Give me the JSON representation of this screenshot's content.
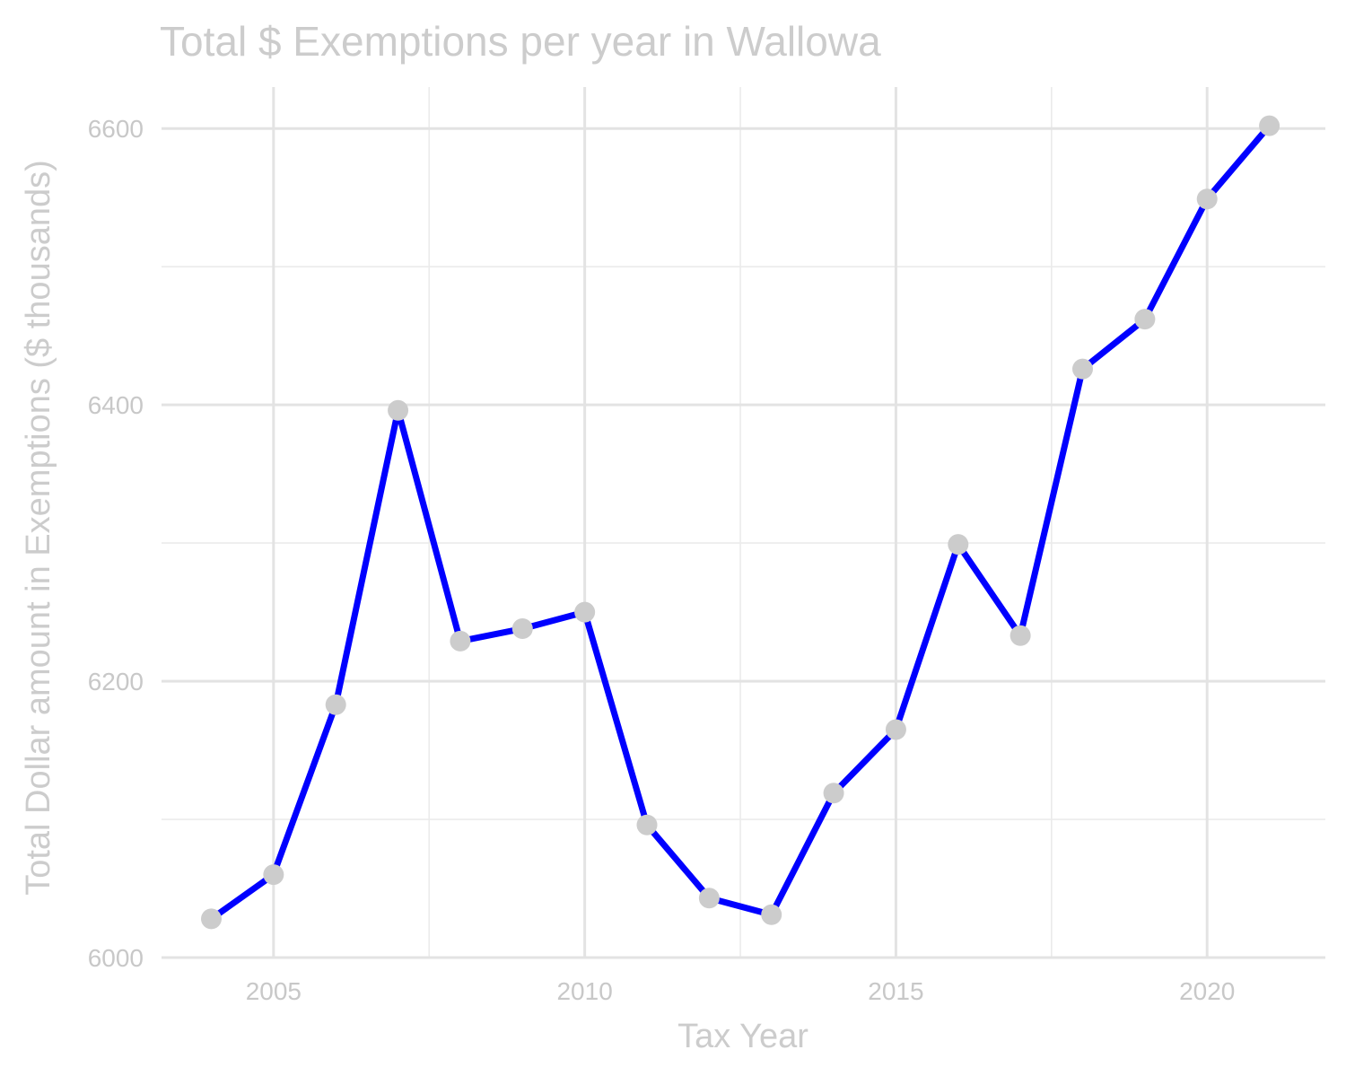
{
  "chart_data": {
    "type": "line",
    "title": "Total $ Exemptions per year in Wallowa",
    "xlabel": "Tax Year",
    "ylabel": "Total Dollar amount in Exemptions ($ thousands)",
    "xlim": [
      2003.2,
      2021.9
    ],
    "ylim": [
      6000,
      6630
    ],
    "x_ticks": [
      2005,
      2010,
      2015,
      2020
    ],
    "x_tick_labels": [
      "2005",
      "2010",
      "2015",
      "2020"
    ],
    "y_ticks": [
      6000,
      6200,
      6400,
      6600
    ],
    "y_tick_labels": [
      "6000",
      "6200",
      "6400",
      "6600"
    ],
    "x_minor_ticks": [
      2007.5,
      2012.5,
      2017.5
    ],
    "y_minor_ticks": [
      6100,
      6300,
      6500
    ],
    "grid": true,
    "legend": "none",
    "line_color": "#0000ff",
    "point_color": "#cccccc",
    "series": [
      {
        "x": [
          2004,
          2005,
          2006,
          2007,
          2008,
          2009,
          2010,
          2011,
          2012,
          2013,
          2014,
          2015,
          2016,
          2017,
          2018,
          2019,
          2020,
          2021
        ],
        "values": [
          6028,
          6060,
          6183,
          6396,
          6229,
          6238,
          6250,
          6096,
          6043,
          6031,
          6119,
          6165,
          6299,
          6233,
          6426,
          6462,
          6549,
          6602
        ]
      }
    ]
  }
}
